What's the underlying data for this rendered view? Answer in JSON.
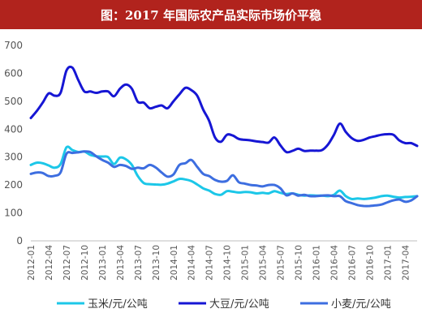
{
  "chart_data": {
    "type": "line",
    "title": "图：2017 年国际农产品实际市场价平稳",
    "ylim": [
      0,
      700
    ],
    "y_ticks": [
      0,
      100,
      200,
      300,
      400,
      500,
      600,
      700
    ],
    "grid": false,
    "legend_position": "bottom",
    "x": [
      "2012-01",
      "2012-02",
      "2012-03",
      "2012-04",
      "2012-05",
      "2012-06",
      "2012-07",
      "2012-08",
      "2012-09",
      "2012-10",
      "2012-11",
      "2012-12",
      "2013-01",
      "2013-02",
      "2013-03",
      "2013-04",
      "2013-05",
      "2013-06",
      "2013-07",
      "2013-08",
      "2013-09",
      "2013-10",
      "2013-11",
      "2013-12",
      "2014-01",
      "2014-02",
      "2014-03",
      "2014-04",
      "2014-05",
      "2014-06",
      "2014-07",
      "2014-08",
      "2014-09",
      "2014-10",
      "2014-11",
      "2014-12",
      "2015-01",
      "2015-02",
      "2015-03",
      "2015-04",
      "2015-05",
      "2015-06",
      "2015-07",
      "2015-08",
      "2015-09",
      "2015-10",
      "2015-11",
      "2015-12",
      "2016-01",
      "2016-02",
      "2016-03",
      "2016-04",
      "2016-05",
      "2016-06",
      "2016-07",
      "2016-08",
      "2016-09",
      "2016-10",
      "2016-11",
      "2016-12",
      "2017-01",
      "2017-02",
      "2017-03",
      "2017-04",
      "2017-05",
      "2017-06"
    ],
    "x_tick_labels": [
      "2012-01",
      "2012-04",
      "2012-07",
      "2012-10",
      "2013-01",
      "2013-04",
      "2013-07",
      "2013-10",
      "2014-01",
      "2014-04",
      "2014-07",
      "2014-10",
      "2015-01",
      "2015-04",
      "2015-07",
      "2015-10",
      "2016-01",
      "2016-04",
      "2016-07",
      "2016-10",
      "2017-01",
      "2017-04"
    ],
    "series": [
      {
        "name": "玉米/元/公吨",
        "color": "#1cc7e8",
        "values": [
          272,
          280,
          278,
          270,
          262,
          275,
          335,
          325,
          318,
          320,
          308,
          303,
          302,
          300,
          275,
          298,
          292,
          272,
          232,
          207,
          203,
          202,
          201,
          205,
          213,
          222,
          220,
          214,
          202,
          188,
          180,
          168,
          165,
          178,
          176,
          173,
          175,
          174,
          170,
          172,
          170,
          178,
          172,
          168,
          170,
          165,
          162,
          163,
          162,
          162,
          160,
          165,
          180,
          160,
          150,
          152,
          150,
          152,
          155,
          160,
          162,
          158,
          155,
          157,
          158,
          160
        ]
      },
      {
        "name": "大豆/元/公吨",
        "color": "#1616d4",
        "values": [
          440,
          465,
          495,
          528,
          520,
          530,
          610,
          620,
          575,
          535,
          535,
          530,
          535,
          535,
          518,
          545,
          560,
          545,
          498,
          495,
          475,
          480,
          485,
          475,
          500,
          525,
          548,
          540,
          520,
          470,
          430,
          370,
          355,
          380,
          377,
          365,
          362,
          360,
          356,
          354,
          352,
          370,
          342,
          318,
          322,
          330,
          322,
          323,
          323,
          325,
          345,
          380,
          420,
          390,
          368,
          358,
          362,
          370,
          375,
          380,
          382,
          380,
          360,
          350,
          350,
          340
        ]
      },
      {
        "name": "小麦/元/公吨",
        "color": "#3d6ee0",
        "values": [
          240,
          245,
          243,
          232,
          233,
          245,
          312,
          315,
          317,
          320,
          318,
          303,
          290,
          280,
          265,
          272,
          268,
          258,
          262,
          260,
          272,
          263,
          245,
          230,
          238,
          272,
          278,
          290,
          265,
          240,
          232,
          218,
          212,
          215,
          235,
          210,
          205,
          200,
          198,
          195,
          200,
          200,
          188,
          163,
          170,
          162,
          165,
          160,
          160,
          162,
          163,
          160,
          160,
          142,
          135,
          128,
          125,
          125,
          127,
          130,
          138,
          145,
          148,
          140,
          145,
          160
        ]
      }
    ]
  }
}
